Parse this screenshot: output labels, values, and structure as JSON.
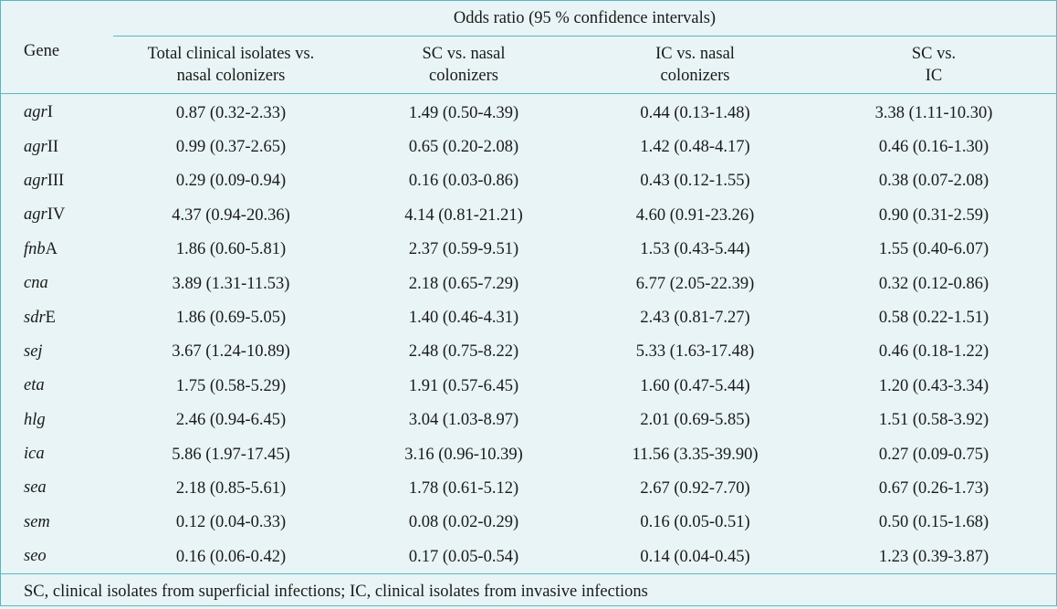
{
  "table": {
    "group_header": "Odds ratio (95 % confidence intervals)",
    "gene_header": "Gene",
    "columns": [
      {
        "line1": "Total clinical isolates vs.",
        "line2": "nasal colonizers"
      },
      {
        "line1": "SC vs. nasal",
        "line2": "colonizers"
      },
      {
        "line1": "IC vs. nasal",
        "line2": "colonizers"
      },
      {
        "line1": "SC vs.",
        "line2": "IC"
      }
    ],
    "rows": [
      {
        "gene_italic": "agr",
        "gene_plain": "I",
        "values": [
          "0.87 (0.32-2.33)",
          "1.49 (0.50-4.39)",
          "0.44 (0.13-1.48)",
          "3.38 (1.11-10.30)"
        ]
      },
      {
        "gene_italic": "agr",
        "gene_plain": "II",
        "values": [
          "0.99 (0.37-2.65)",
          "0.65 (0.20-2.08)",
          "1.42 (0.48-4.17)",
          "0.46 (0.16-1.30)"
        ]
      },
      {
        "gene_italic": "agr",
        "gene_plain": "III",
        "values": [
          "0.29 (0.09-0.94)",
          "0.16 (0.03-0.86)",
          "0.43 (0.12-1.55)",
          "0.38 (0.07-2.08)"
        ]
      },
      {
        "gene_italic": "agr",
        "gene_plain": "IV",
        "values": [
          "4.37 (0.94-20.36)",
          "4.14 (0.81-21.21)",
          "4.60 (0.91-23.26)",
          "0.90 (0.31-2.59)"
        ]
      },
      {
        "gene_italic": "fnb",
        "gene_plain": "A",
        "values": [
          "1.86 (0.60-5.81)",
          "2.37 (0.59-9.51)",
          "1.53 (0.43-5.44)",
          "1.55 (0.40-6.07)"
        ]
      },
      {
        "gene_italic": "cna",
        "gene_plain": "",
        "values": [
          "3.89 (1.31-11.53)",
          "2.18 (0.65-7.29)",
          "6.77 (2.05-22.39)",
          "0.32 (0.12-0.86)"
        ]
      },
      {
        "gene_italic": "sdr",
        "gene_plain": "E",
        "values": [
          "1.86 (0.69-5.05)",
          "1.40 (0.46-4.31)",
          "2.43 (0.81-7.27)",
          "0.58 (0.22-1.51)"
        ]
      },
      {
        "gene_italic": "sej",
        "gene_plain": "",
        "values": [
          "3.67 (1.24-10.89)",
          "2.48 (0.75-8.22)",
          "5.33 (1.63-17.48)",
          "0.46 (0.18-1.22)"
        ]
      },
      {
        "gene_italic": "eta",
        "gene_plain": "",
        "values": [
          "1.75 (0.58-5.29)",
          "1.91 (0.57-6.45)",
          "1.60 (0.47-5.44)",
          "1.20 (0.43-3.34)"
        ]
      },
      {
        "gene_italic": "hlg",
        "gene_plain": "",
        "values": [
          "2.46 (0.94-6.45)",
          "3.04 (1.03-8.97)",
          "2.01 (0.69-5.85)",
          "1.51 (0.58-3.92)"
        ]
      },
      {
        "gene_italic": "ica",
        "gene_plain": "",
        "values": [
          "5.86 (1.97-17.45)",
          "3.16 (0.96-10.39)",
          "11.56 (3.35-39.90)",
          "0.27 (0.09-0.75)"
        ]
      },
      {
        "gene_italic": "sea",
        "gene_plain": "",
        "values": [
          "2.18 (0.85-5.61)",
          "1.78 (0.61-5.12)",
          "2.67 (0.92-7.70)",
          "0.67 (0.26-1.73)"
        ]
      },
      {
        "gene_italic": "sem",
        "gene_plain": "",
        "values": [
          "0.12 (0.04-0.33)",
          "0.08 (0.02-0.29)",
          "0.16 (0.05-0.51)",
          "0.50 (0.15-1.68)"
        ]
      },
      {
        "gene_italic": "seo",
        "gene_plain": "",
        "values": [
          "0.16 (0.06-0.42)",
          "0.17 (0.05-0.54)",
          "0.14 (0.04-0.45)",
          "1.23 (0.39-3.87)"
        ]
      }
    ],
    "footnote": "SC, clinical isolates from superficial infections; IC, clinical isolates from invasive infections"
  },
  "colors": {
    "background": "#e8f4f5",
    "rule": "#58b8c2",
    "text": "#1a1a1a"
  }
}
